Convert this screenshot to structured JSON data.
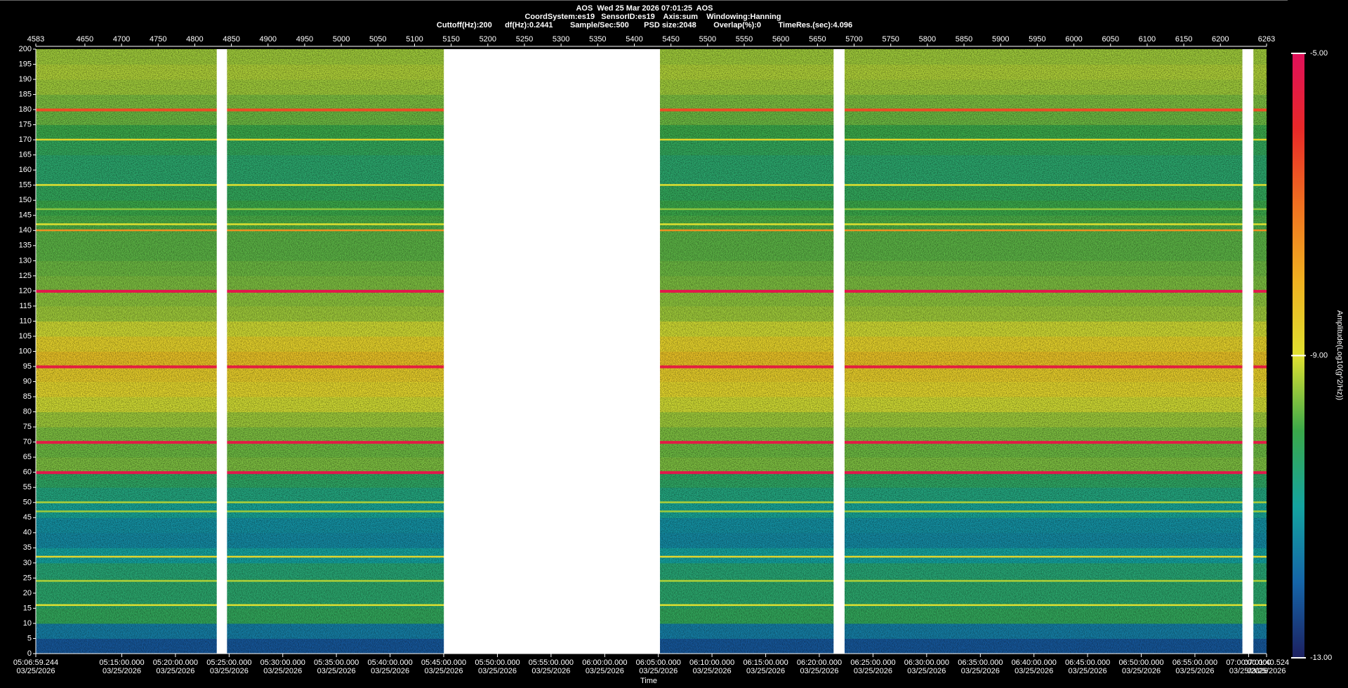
{
  "chart_data": {
    "type": "spectrogram",
    "title": "AOS  Wed 25 Mar 2026 07:01:25  AOS",
    "subtitle": "CoordSystem:es19   SensorID:es19    Axis:sum    Windowing:Hanning",
    "settings": "Cuttoff(Hz):200      df(Hz):0.2441        Sample/Sec:500       PSD size:2048        Overlap(%):0        TimeRes.(sec):4.096",
    "xlim": [
      4583,
      6263
    ],
    "xticks": [
      4583,
      4650,
      4700,
      4750,
      4800,
      4850,
      4900,
      4950,
      5000,
      5050,
      5100,
      5150,
      5200,
      5250,
      5300,
      5350,
      5400,
      5450,
      5500,
      5550,
      5600,
      5650,
      5700,
      5750,
      5800,
      5850,
      5900,
      5950,
      6000,
      6050,
      6100,
      6150,
      6200,
      6263
    ],
    "time_ticks": [
      {
        "value": 4583,
        "label": "05:06:59.244"
      },
      {
        "value": 4700.4,
        "label": "05:15:00.000"
      },
      {
        "value": 4773.6,
        "label": "05:20:00.000"
      },
      {
        "value": 4846.9,
        "label": "05:25:00.000"
      },
      {
        "value": 4920.1,
        "label": "05:30:00.000"
      },
      {
        "value": 4993.3,
        "label": "05:35:00.000"
      },
      {
        "value": 5066.6,
        "label": "05:40:00.000"
      },
      {
        "value": 5139.8,
        "label": "05:45:00.000"
      },
      {
        "value": 5213.1,
        "label": "05:50:00.000"
      },
      {
        "value": 5286.3,
        "label": "05:55:00.000"
      },
      {
        "value": 5359.6,
        "label": "06:00:00.000"
      },
      {
        "value": 5432.8,
        "label": "06:05:00.000"
      },
      {
        "value": 5506.0,
        "label": "06:10:00.000"
      },
      {
        "value": 5579.3,
        "label": "06:15:00.000"
      },
      {
        "value": 5652.5,
        "label": "06:20:00.000"
      },
      {
        "value": 5725.8,
        "label": "06:25:00.000"
      },
      {
        "value": 5799.0,
        "label": "06:30:00.000"
      },
      {
        "value": 5872.3,
        "label": "06:35:00.000"
      },
      {
        "value": 5945.5,
        "label": "06:40:00.000"
      },
      {
        "value": 6018.7,
        "label": "06:45:00.000"
      },
      {
        "value": 6092.0,
        "label": "06:50:00.000"
      },
      {
        "value": 6165.2,
        "label": "06:55:00.000"
      },
      {
        "value": 6238.5,
        "label": "07:00:00.000"
      },
      {
        "value": 6263,
        "label": "07:01:40.524"
      }
    ],
    "date": "03/25/2026",
    "xlabel": "Time",
    "ylim": [
      0,
      200
    ],
    "yticks": [
      0,
      5,
      10,
      15,
      20,
      25,
      30,
      35,
      40,
      45,
      50,
      55,
      60,
      65,
      70,
      75,
      80,
      85,
      90,
      95,
      100,
      105,
      110,
      115,
      120,
      125,
      130,
      135,
      140,
      145,
      150,
      155,
      160,
      165,
      170,
      175,
      180,
      185,
      190,
      195,
      200
    ],
    "zlim": [
      -13,
      -5
    ],
    "zticks": [
      {
        "value": -5,
        "label": "-5.00"
      },
      {
        "value": -9,
        "label": "-9.00"
      },
      {
        "value": -13,
        "label": "-13.00"
      }
    ],
    "zlabel": "Amplitude(Log10(g^2/Hz))",
    "colormap": [
      "#1c2060",
      "#1565a8",
      "#14a3a0",
      "#3aa84a",
      "#e0e030",
      "#f0b020",
      "#f07020",
      "#e82828",
      "#e0105a"
    ],
    "band_edges": [
      0,
      5,
      10,
      15,
      20,
      25,
      30,
      35,
      40,
      45,
      50,
      55,
      60,
      65,
      70,
      75,
      80,
      85,
      90,
      95,
      100,
      105,
      110,
      115,
      120,
      125,
      130,
      135,
      140,
      145,
      150,
      155,
      160,
      165,
      170,
      175,
      180,
      185,
      190,
      195,
      200
    ],
    "levels": [
      -12.2,
      -11.6,
      -10.2,
      -10.4,
      -10.4,
      -10.5,
      -11.0,
      -11.4,
      -11.3,
      -10.9,
      -10.6,
      -10.3,
      -9.6,
      -9.7,
      -9.6,
      -9.4,
      -9.1,
      -8.8,
      -8.6,
      -8.4,
      -8.7,
      -9.1,
      -9.4,
      -9.5,
      -9.6,
      -9.7,
      -9.8,
      -9.8,
      -9.9,
      -10.0,
      -10.2,
      -10.4,
      -10.4,
      -10.2,
      -10.0,
      -9.7,
      -9.6,
      -9.4,
      -9.3,
      -9.4
    ],
    "tones": {
      "frequencies": [
        180,
        170,
        155,
        147,
        142,
        140,
        120,
        95,
        70,
        60,
        50,
        47,
        32,
        24,
        16
      ],
      "levels": [
        -6.5,
        -8.8,
        -9.0,
        -9.5,
        -9.0,
        -7.5,
        -5.3,
        -5.5,
        -5.4,
        -5.3,
        -9.3,
        -9.4,
        -8.8,
        -9.3,
        -9.0
      ]
    },
    "gaps": [
      [
        4830,
        4844
      ],
      [
        5140,
        5435
      ],
      [
        5672,
        5687
      ],
      [
        6230,
        6245
      ]
    ]
  }
}
